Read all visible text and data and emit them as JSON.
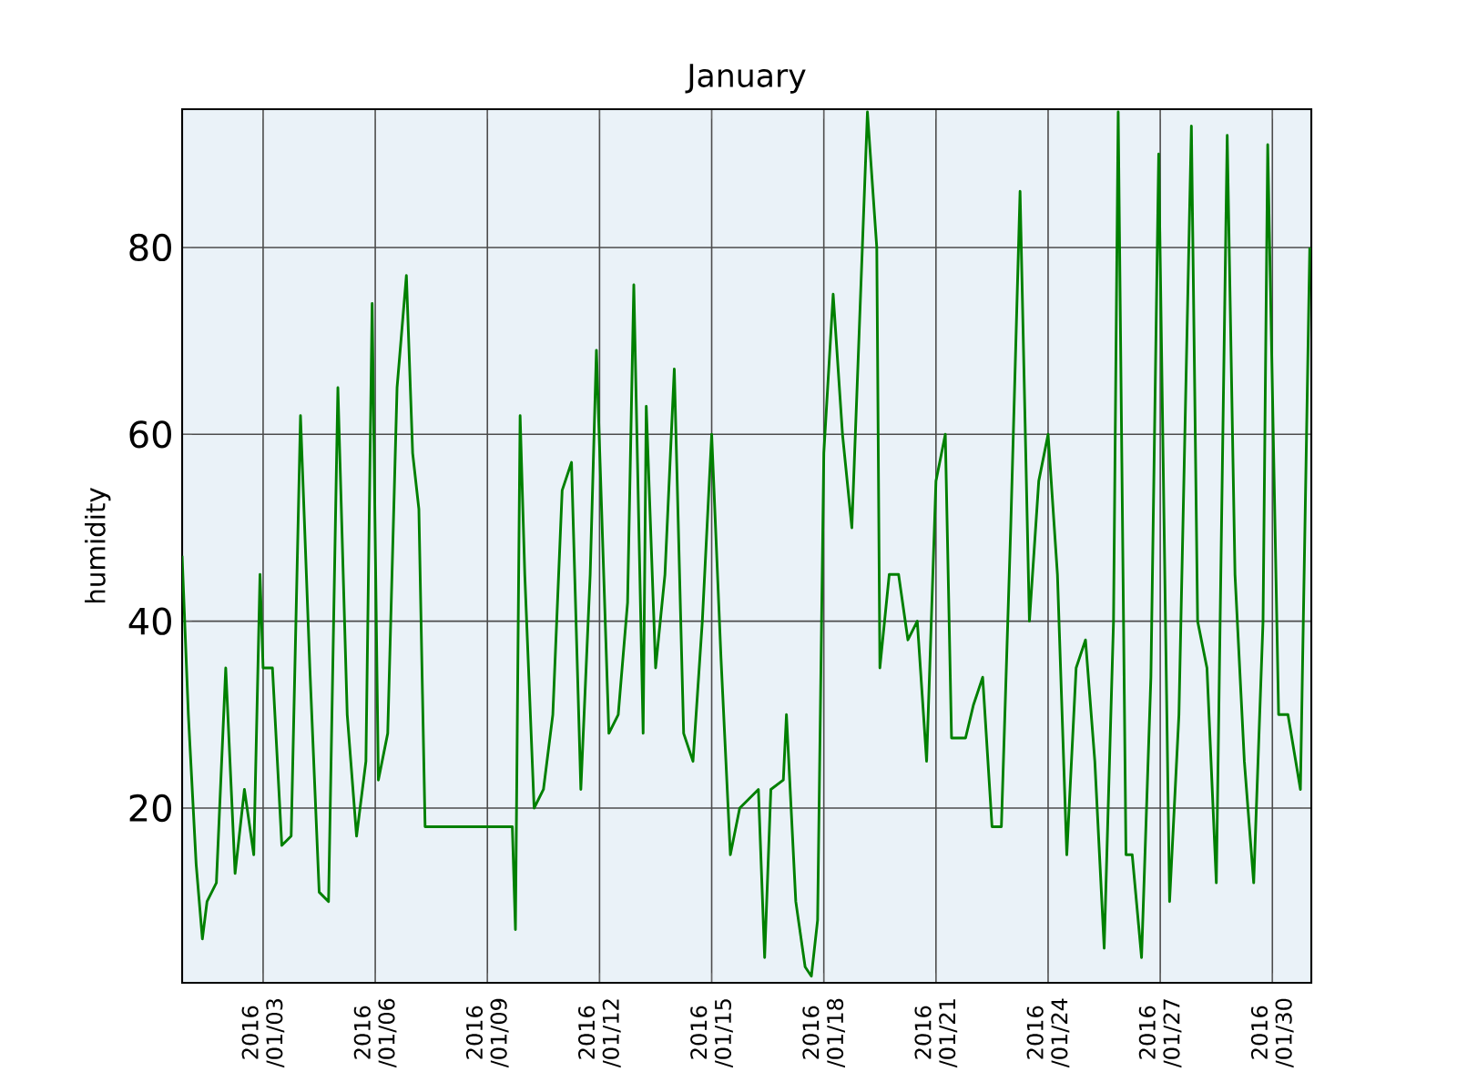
{
  "chart_data": {
    "type": "line",
    "title": "January",
    "ylabel": "humidity",
    "color": "#008000",
    "grid": true,
    "xlim": [
      "2015-12-31T20:00",
      "2016-01-31T01:00"
    ],
    "ylim": [
      1.3,
      94.8
    ],
    "yticks": [
      20,
      40,
      60,
      80
    ],
    "xticks": [
      {
        "value": "2016-01-03",
        "label": "2016 /01/03"
      },
      {
        "value": "2016-01-06",
        "label": "2016 /01/06"
      },
      {
        "value": "2016-01-09",
        "label": "2016 /01/09"
      },
      {
        "value": "2016-01-12",
        "label": "2016 /01/12"
      },
      {
        "value": "2016-01-15",
        "label": "2016 /01/15"
      },
      {
        "value": "2016-01-18",
        "label": "2016 /01/18"
      },
      {
        "value": "2016-01-21",
        "label": "2016 /01/21"
      },
      {
        "value": "2016-01-24",
        "label": "2016 /01/24"
      },
      {
        "value": "2016-01-27",
        "label": "2016 /01/27"
      },
      {
        "value": "2016-01-30",
        "label": "2016 /01/30"
      }
    ],
    "x": [
      "2015-12-31T20:00",
      "2016-01-01T00:00",
      "2016-01-01T05:00",
      "2016-01-01T09:00",
      "2016-01-01T12:00",
      "2016-01-01T18:00",
      "2016-01-02T00:00",
      "2016-01-02T06:00",
      "2016-01-02T12:00",
      "2016-01-02T18:00",
      "2016-01-02T22:00",
      "2016-01-03T00:00",
      "2016-01-03T06:00",
      "2016-01-03T12:00",
      "2016-01-03T18:00",
      "2016-01-04T00:00",
      "2016-01-04T06:00",
      "2016-01-04T12:00",
      "2016-01-04T18:00",
      "2016-01-05T00:00",
      "2016-01-05T06:00",
      "2016-01-05T12:00",
      "2016-01-05T18:00",
      "2016-01-05T22:00",
      "2016-01-06T02:00",
      "2016-01-06T08:00",
      "2016-01-06T14:00",
      "2016-01-06T20:00",
      "2016-01-07T00:00",
      "2016-01-07T04:00",
      "2016-01-07T08:00",
      "2016-01-09T16:00",
      "2016-01-09T18:00",
      "2016-01-09T21:00",
      "2016-01-10T00:00",
      "2016-01-10T06:00",
      "2016-01-10T12:00",
      "2016-01-10T18:00",
      "2016-01-11T00:00",
      "2016-01-11T06:00",
      "2016-01-11T12:00",
      "2016-01-11T18:00",
      "2016-01-11T22:00",
      "2016-01-12T06:00",
      "2016-01-12T12:00",
      "2016-01-12T18:00",
      "2016-01-12T22:00",
      "2016-01-13T04:00",
      "2016-01-13T06:00",
      "2016-01-13T12:00",
      "2016-01-13T18:00",
      "2016-01-14T00:00",
      "2016-01-14T06:00",
      "2016-01-14T12:00",
      "2016-01-14T18:00",
      "2016-01-15T00:00",
      "2016-01-15T06:00",
      "2016-01-15T12:00",
      "2016-01-15T18:00",
      "2016-01-16T00:00",
      "2016-01-16T06:00",
      "2016-01-16T10:00",
      "2016-01-16T14:00",
      "2016-01-16T22:00",
      "2016-01-17T00:00",
      "2016-01-17T06:00",
      "2016-01-17T12:00",
      "2016-01-17T16:00",
      "2016-01-17T20:00",
      "2016-01-18T00:00",
      "2016-01-18T06:00",
      "2016-01-18T12:00",
      "2016-01-18T18:00",
      "2016-01-19T04:00",
      "2016-01-19T10:00",
      "2016-01-19T12:00",
      "2016-01-19T18:00",
      "2016-01-20T00:00",
      "2016-01-20T06:00",
      "2016-01-20T12:00",
      "2016-01-20T18:00",
      "2016-01-21T00:00",
      "2016-01-21T06:00",
      "2016-01-21T10:00",
      "2016-01-21T19:00",
      "2016-01-22T00:00",
      "2016-01-22T06:00",
      "2016-01-22T12:00",
      "2016-01-22T18:00",
      "2016-01-23T00:00",
      "2016-01-23T06:00",
      "2016-01-23T12:00",
      "2016-01-23T18:00",
      "2016-01-24T00:00",
      "2016-01-24T06:00",
      "2016-01-24T12:00",
      "2016-01-24T18:00",
      "2016-01-25T00:00",
      "2016-01-25T06:00",
      "2016-01-25T12:00",
      "2016-01-25T18:00",
      "2016-01-25T21:00",
      "2016-01-26T02:00",
      "2016-01-26T06:00",
      "2016-01-26T12:00",
      "2016-01-26T18:00",
      "2016-01-26T23:00",
      "2016-01-27T06:00",
      "2016-01-27T12:00",
      "2016-01-27T20:00",
      "2016-01-28T00:00",
      "2016-01-28T06:00",
      "2016-01-28T12:00",
      "2016-01-28T19:00",
      "2016-01-29T00:00",
      "2016-01-29T06:00",
      "2016-01-29T12:00",
      "2016-01-29T18:00",
      "2016-01-29T21:00",
      "2016-01-30T04:00",
      "2016-01-30T10:00",
      "2016-01-30T18:00",
      "2016-01-31T00:00"
    ],
    "values": [
      47,
      30,
      14,
      6,
      10,
      12,
      35,
      13,
      22,
      15,
      45,
      35,
      35,
      16,
      17,
      62,
      35,
      11,
      10,
      65,
      30,
      17,
      25,
      74,
      23,
      28,
      65,
      77,
      58,
      52,
      18,
      18,
      7,
      62,
      45,
      20,
      22,
      30,
      54,
      57,
      22,
      45,
      69,
      28,
      30,
      42,
      76,
      28,
      63,
      35,
      45,
      67,
      28,
      25,
      40,
      60,
      36,
      15,
      20,
      21,
      22,
      4,
      22,
      23,
      30,
      10,
      3,
      2,
      8,
      58,
      75,
      60,
      50,
      94.5,
      80,
      35,
      45,
      45,
      38,
      40,
      25,
      55,
      60,
      27.5,
      27.5,
      31,
      34,
      18,
      18,
      50,
      86,
      40,
      55,
      60,
      45,
      15,
      35,
      38,
      25,
      5,
      40,
      94.5,
      15,
      15,
      4,
      34,
      90,
      10,
      30,
      93,
      40,
      35,
      12,
      92,
      45,
      25,
      12,
      40,
      91,
      30,
      30,
      22,
      80
    ]
  }
}
